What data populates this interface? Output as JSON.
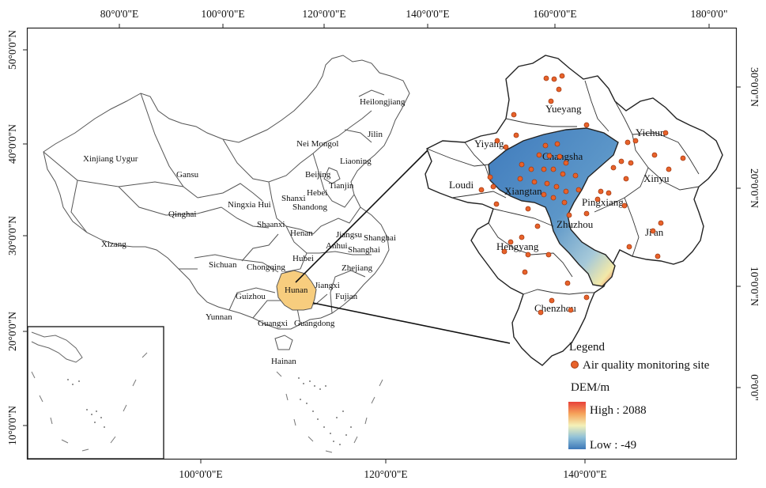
{
  "top_ticks": [
    "80°0'0\"E",
    "100°0'0\"E",
    "120°0'0\"E",
    "140°0'0\"E",
    "160°0'0\"E",
    "180°0'0\""
  ],
  "bottom_ticks": [
    "100°0'0\"E",
    "120°0'0\"E",
    "140°0'0\"E"
  ],
  "left_ticks": [
    "50°0'0\"N",
    "40°0'0\"N",
    "30°0'0\"N",
    "20°0'0\"N",
    "10°0'0\"N"
  ],
  "right_ticks": [
    "30°0'0\"N",
    "20°0'0\"N",
    "10°0'0\"N",
    "0°0'0\""
  ],
  "provinces": {
    "heilongjiang": "Heilongjiang",
    "jilin": "Jilin",
    "liaoning": "Liaoning",
    "nei_mongol": "Nei Mongol",
    "xinjiang": "Xinjiang Uygur",
    "gansu": "Gansu",
    "beijing": "Beijing",
    "tianjin": "Tianjin",
    "hebei": "Hebei",
    "shanxi": "Shanxi",
    "shandong": "Shandong",
    "ningxia": "Ningxia Hui",
    "qinghai": "Qinghai",
    "shaanxi": "Shaanxi",
    "henan": "Henan",
    "jiangsu": "Jiangsu",
    "shanghai1": "Shanghai",
    "shanghai2": "Shanghai",
    "anhui": "Anhui",
    "xizang": "Xizang",
    "sichuan": "Sichuan",
    "chongqing": "Chongqing",
    "hubei": "Hubei",
    "zhejiang": "Zhejiang",
    "hunan": "Hunan",
    "jiangxi": "Jiangxi",
    "guizhou": "Guizhou",
    "fujian": "Fujian",
    "yunnan": "Yunnan",
    "guangxi": "Guangxi",
    "guangdong": "Guangdong",
    "hainan": "Hainan"
  },
  "cities": {
    "yueyang": "Yueyang",
    "yichun": "Yichun",
    "yiyang": "Yiyang",
    "changsha": "Changsha",
    "xinyu": "Xinyu",
    "loudi": "Loudi",
    "xiangtan": "Xiangtan",
    "pingxiang": "Pingxiang",
    "zhuzhou": "Zhuzhou",
    "jian": "Ji'an",
    "hengyang": "Hengyang",
    "chenzhou": "Chenzhou"
  },
  "legend": {
    "title": "Legend",
    "site_label": "Air quality monitoring site",
    "dem_title": "DEM/m",
    "high": "High : 2088",
    "low": "Low : -49"
  },
  "colors": {
    "highlight": "#f7cd7e",
    "site_fill": "#e8622a",
    "dem_high": "#e8413a",
    "dem_mid": "#f4f1b8",
    "dem_low": "#3d78b8"
  }
}
